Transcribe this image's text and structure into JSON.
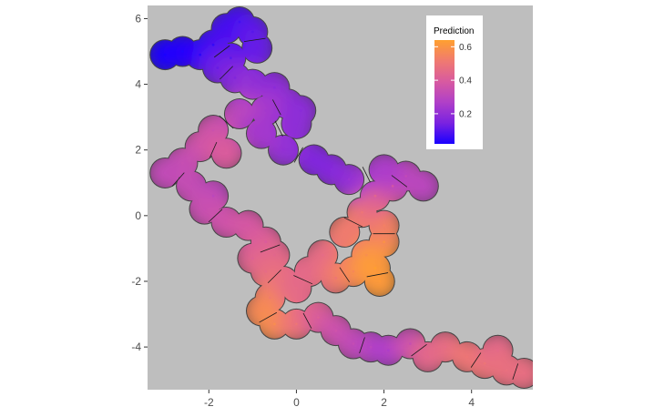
{
  "chart_data": {
    "type": "heatmap",
    "title": "",
    "xlabel": "",
    "ylabel": "",
    "xlim": [
      -3.4,
      5.4
    ],
    "ylim": [
      -5.3,
      6.4
    ],
    "x_ticks": [
      -2,
      0,
      2,
      4
    ],
    "x_tick_labels": [
      "-2",
      "0",
      "2",
      "4"
    ],
    "y_ticks": [
      -4,
      -2,
      0,
      2,
      4,
      6
    ],
    "y_tick_labels": [
      "-4",
      "-2",
      "0",
      "2",
      "4",
      "6"
    ],
    "grid": false,
    "panel_background": "#bebebe",
    "legend": {
      "title": "Prediction",
      "placement": "top-right",
      "min": 0.02,
      "max": 0.64,
      "breaks": [
        0.2,
        0.4,
        0.6
      ],
      "break_labels": [
        "0.2",
        "0.4",
        "0.6"
      ],
      "colors": [
        "#1a00ff",
        "#7a22e0",
        "#b040c8",
        "#d85aa0",
        "#f07a70",
        "#ffa030"
      ]
    },
    "points": [
      {
        "x": -3.0,
        "y": 4.9,
        "value": 0.02
      },
      {
        "x": -2.6,
        "y": 5.0,
        "value": 0.03
      },
      {
        "x": -2.2,
        "y": 4.9,
        "value": 0.04
      },
      {
        "x": -1.9,
        "y": 5.2,
        "value": 0.05
      },
      {
        "x": -1.6,
        "y": 5.7,
        "value": 0.08
      },
      {
        "x": -1.3,
        "y": 5.9,
        "value": 0.07
      },
      {
        "x": -1.0,
        "y": 5.6,
        "value": 0.1
      },
      {
        "x": -0.9,
        "y": 5.1,
        "value": 0.12
      },
      {
        "x": -1.5,
        "y": 4.8,
        "value": 0.1
      },
      {
        "x": -1.8,
        "y": 4.5,
        "value": 0.12
      },
      {
        "x": -1.4,
        "y": 4.2,
        "value": 0.16
      },
      {
        "x": -1.0,
        "y": 4.0,
        "value": 0.2
      },
      {
        "x": -0.5,
        "y": 3.9,
        "value": 0.18
      },
      {
        "x": -0.2,
        "y": 3.4,
        "value": 0.2
      },
      {
        "x": 0.1,
        "y": 3.2,
        "value": 0.18
      },
      {
        "x": -0.7,
        "y": 3.2,
        "value": 0.24
      },
      {
        "x": -1.3,
        "y": 3.1,
        "value": 0.3
      },
      {
        "x": -1.9,
        "y": 2.6,
        "value": 0.35
      },
      {
        "x": -2.2,
        "y": 2.1,
        "value": 0.37
      },
      {
        "x": -1.6,
        "y": 1.9,
        "value": 0.4
      },
      {
        "x": -2.6,
        "y": 1.6,
        "value": 0.34
      },
      {
        "x": -3.0,
        "y": 1.3,
        "value": 0.32
      },
      {
        "x": -2.4,
        "y": 0.9,
        "value": 0.33
      },
      {
        "x": -1.9,
        "y": 0.6,
        "value": 0.3
      },
      {
        "x": -2.1,
        "y": 0.2,
        "value": 0.34
      },
      {
        "x": -1.6,
        "y": -0.2,
        "value": 0.36
      },
      {
        "x": -1.1,
        "y": -0.3,
        "value": 0.38
      },
      {
        "x": -0.7,
        "y": -0.8,
        "value": 0.4
      },
      {
        "x": -0.5,
        "y": -1.2,
        "value": 0.44
      },
      {
        "x": -1.0,
        "y": -1.3,
        "value": 0.42
      },
      {
        "x": -0.7,
        "y": -1.7,
        "value": 0.46
      },
      {
        "x": -0.3,
        "y": -2.0,
        "value": 0.48
      },
      {
        "x": -0.6,
        "y": -2.5,
        "value": 0.52
      },
      {
        "x": -0.8,
        "y": -2.9,
        "value": 0.56
      },
      {
        "x": -0.5,
        "y": -3.3,
        "value": 0.58
      },
      {
        "x": 0.0,
        "y": -3.3,
        "value": 0.5
      },
      {
        "x": 0.5,
        "y": -3.1,
        "value": 0.42
      },
      {
        "x": 0.9,
        "y": -3.5,
        "value": 0.36
      },
      {
        "x": 1.3,
        "y": -3.9,
        "value": 0.33
      },
      {
        "x": 1.7,
        "y": -4.0,
        "value": 0.3
      },
      {
        "x": 2.1,
        "y": -4.1,
        "value": 0.26
      },
      {
        "x": 2.6,
        "y": -3.9,
        "value": 0.34
      },
      {
        "x": 3.0,
        "y": -4.3,
        "value": 0.44
      },
      {
        "x": 3.4,
        "y": -4.0,
        "value": 0.46
      },
      {
        "x": 3.9,
        "y": -4.3,
        "value": 0.5
      },
      {
        "x": 4.3,
        "y": -4.5,
        "value": 0.5
      },
      {
        "x": 4.6,
        "y": -4.1,
        "value": 0.45
      },
      {
        "x": 4.8,
        "y": -4.7,
        "value": 0.48
      },
      {
        "x": 5.2,
        "y": -4.8,
        "value": 0.47
      },
      {
        "x": 0.0,
        "y": -2.2,
        "value": 0.46
      },
      {
        "x": 0.3,
        "y": -1.7,
        "value": 0.45
      },
      {
        "x": 0.6,
        "y": -1.2,
        "value": 0.46
      },
      {
        "x": 0.9,
        "y": -1.9,
        "value": 0.5
      },
      {
        "x": 1.3,
        "y": -1.7,
        "value": 0.56
      },
      {
        "x": 1.6,
        "y": -1.2,
        "value": 0.58
      },
      {
        "x": 1.8,
        "y": -1.6,
        "value": 0.64
      },
      {
        "x": 1.9,
        "y": -2.0,
        "value": 0.62
      },
      {
        "x": 2.0,
        "y": -0.8,
        "value": 0.6
      },
      {
        "x": 2.0,
        "y": -0.3,
        "value": 0.54
      },
      {
        "x": 1.5,
        "y": 0.1,
        "value": 0.5
      },
      {
        "x": 1.1,
        "y": -0.5,
        "value": 0.52
      },
      {
        "x": 1.8,
        "y": 0.6,
        "value": 0.44
      },
      {
        "x": 2.2,
        "y": 0.9,
        "value": 0.38
      },
      {
        "x": 2.5,
        "y": 1.2,
        "value": 0.32
      },
      {
        "x": 2.9,
        "y": 0.9,
        "value": 0.3
      },
      {
        "x": 2.0,
        "y": 1.4,
        "value": 0.26
      },
      {
        "x": 1.2,
        "y": 1.1,
        "value": 0.22
      },
      {
        "x": 0.8,
        "y": 1.4,
        "value": 0.18
      },
      {
        "x": 0.4,
        "y": 1.7,
        "value": 0.16
      },
      {
        "x": -0.3,
        "y": 2.0,
        "value": 0.2
      },
      {
        "x": -0.8,
        "y": 2.5,
        "value": 0.24
      },
      {
        "x": 0.0,
        "y": 2.8,
        "value": 0.19
      }
    ]
  }
}
